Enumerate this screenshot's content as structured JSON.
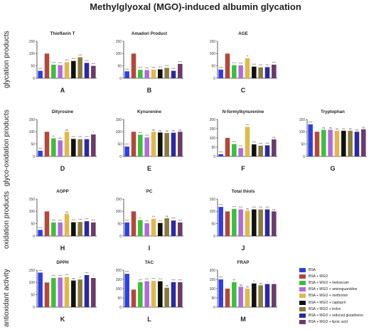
{
  "title": "Methylglyoxal (MGO)-induced albumin glycation",
  "row_labels": [
    "glycation products",
    "glyco-oxidation products",
    "oxidation products",
    "antioxidant activity"
  ],
  "legend": [
    {
      "name": "BSA",
      "color": "#2d3fe0"
    },
    {
      "name": "BSA + MGO",
      "color": "#b5473a"
    },
    {
      "name": "BSA + MGO + meloxicam",
      "color": "#3cbf3c"
    },
    {
      "name": "BSA + MGO + aminoguanidine",
      "color": "#b36ad9"
    },
    {
      "name": "BSA + MGO + metformin",
      "color": "#e0b94a"
    },
    {
      "name": "BSA + MGO + captopril",
      "color": "#111111"
    },
    {
      "name": "BSA + MGO + trolox",
      "color": "#8a7a3a"
    },
    {
      "name": "BSA + MGO + reduced glutathione",
      "color": "#2a2aa0"
    },
    {
      "name": "BSA + MGO + lipoic acid",
      "color": "#6b3a6b"
    }
  ],
  "chart_data": [
    {
      "type": "bar",
      "title": "Thioflavin T",
      "letter": "A",
      "ylim": [
        0,
        150
      ],
      "yticks": [
        0,
        50,
        100,
        150
      ],
      "values": [
        30,
        100,
        55,
        53,
        65,
        70,
        85,
        62,
        50
      ],
      "labels": [
        "****",
        "",
        "****",
        "****",
        "****",
        "****",
        "****",
        "****",
        "****"
      ]
    },
    {
      "type": "bar",
      "title": "Amadori Product",
      "letter": "B",
      "ylim": [
        0,
        150
      ],
      "yticks": [
        0,
        50,
        100,
        150
      ],
      "values": [
        28,
        100,
        34,
        33,
        35,
        36,
        42,
        30,
        58
      ],
      "labels": [
        "****",
        "",
        "****",
        "****",
        "****",
        "****",
        "****",
        "****",
        "****"
      ]
    },
    {
      "type": "bar",
      "title": "AGE",
      "letter": "C",
      "ylim": [
        0,
        150
      ],
      "yticks": [
        0,
        50,
        100,
        150
      ],
      "values": [
        35,
        100,
        53,
        52,
        81,
        47,
        44,
        45,
        55
      ],
      "labels": [
        "****",
        "",
        "****",
        "****",
        "**",
        "****",
        "****",
        "****",
        "****"
      ]
    },
    {
      "type": "bar",
      "title": "Dityrosine",
      "letter": "D",
      "ylim": [
        0,
        150
      ],
      "yticks": [
        0,
        50,
        100,
        150
      ],
      "values": [
        23,
        100,
        73,
        65,
        100,
        71,
        70,
        70,
        89
      ],
      "labels": [
        "****",
        "",
        "***",
        "****",
        "ns",
        "****",
        "****",
        "****",
        "*"
      ]
    },
    {
      "type": "bar",
      "title": "Kynurenine",
      "letter": "E",
      "ylim": [
        0,
        150
      ],
      "yticks": [
        0,
        50,
        100,
        150
      ],
      "values": [
        40,
        100,
        88,
        77,
        100,
        97,
        95,
        96,
        100
      ],
      "labels": [
        "****",
        "",
        "****",
        "****",
        "ns",
        "ns",
        "ns",
        "ns",
        "ns"
      ]
    },
    {
      "type": "bar",
      "title": "N-formylkynurenine",
      "letter": "F",
      "ylim": [
        0,
        200
      ],
      "yticks": [
        0,
        50,
        100,
        150,
        200
      ],
      "values": [
        12,
        100,
        67,
        45,
        160,
        65,
        58,
        60,
        92
      ],
      "labels": [
        "****",
        "",
        "****",
        "****",
        "****",
        "****",
        "****",
        "****",
        "ns"
      ]
    },
    {
      "type": "bar",
      "title": "Tryptophan",
      "letter": "G",
      "ylim": [
        0,
        150
      ],
      "yticks": [
        0,
        50,
        100,
        150
      ],
      "values": [
        130,
        100,
        108,
        108,
        104,
        104,
        104,
        100,
        110
      ],
      "labels": [
        "****",
        "",
        "ns",
        "ns",
        "ns",
        "ns",
        "ns",
        "ns",
        "ns"
      ]
    },
    {
      "type": "bar",
      "title": "AOPP",
      "letter": "H",
      "ylim": [
        0,
        150
      ],
      "yticks": [
        0,
        50,
        100,
        150
      ],
      "values": [
        25,
        100,
        55,
        55,
        90,
        56,
        57,
        60,
        55
      ],
      "labels": [
        "****",
        "",
        "****",
        "****",
        "ns",
        "****",
        "****",
        "****",
        "****"
      ]
    },
    {
      "type": "bar",
      "title": "PC",
      "letter": "I",
      "ylim": [
        0,
        150
      ],
      "yticks": [
        0,
        50,
        100,
        150
      ],
      "values": [
        55,
        100,
        65,
        52,
        70,
        53,
        72,
        63,
        55
      ],
      "labels": [
        "****",
        "",
        "**",
        "****",
        "***",
        "****",
        "ns",
        "****",
        "****"
      ]
    },
    {
      "type": "bar",
      "title": "Total thiols",
      "letter": "J",
      "ylim": [
        0,
        150
      ],
      "yticks": [
        0,
        50,
        100,
        150
      ],
      "values": [
        118,
        100,
        110,
        108,
        103,
        108,
        108,
        108,
        100
      ],
      "labels": [
        "****",
        "",
        "****",
        "****",
        "ns",
        "****",
        "****",
        "****",
        "ns"
      ]
    },
    {
      "type": "bar",
      "title": "DPPH",
      "letter": "K",
      "ylim": [
        0,
        150
      ],
      "yticks": [
        0,
        50,
        100,
        150
      ],
      "values": [
        140,
        100,
        118,
        120,
        122,
        108,
        112,
        130,
        118
      ],
      "labels": [
        "****",
        "",
        "****",
        "****",
        "****",
        "ns",
        "**",
        "****",
        "*"
      ]
    },
    {
      "type": "bar",
      "title": "TAC",
      "letter": "L",
      "ylim": [
        0,
        200
      ],
      "yticks": [
        0,
        50,
        100,
        150,
        200
      ],
      "values": [
        180,
        95,
        135,
        140,
        142,
        140,
        105,
        135,
        135
      ],
      "labels": [
        "****",
        "",
        "****",
        "****",
        "****",
        "****",
        "ns",
        "****",
        "****"
      ]
    },
    {
      "type": "bar",
      "title": "FRAP",
      "letter": "M",
      "ylim": [
        0,
        200
      ],
      "yticks": [
        0,
        50,
        100,
        150,
        200
      ],
      "values": [
        150,
        100,
        135,
        110,
        100,
        128,
        118,
        125,
        125
      ],
      "labels": [
        "****",
        "",
        "***",
        "ns",
        "ns",
        "**",
        "ns",
        "*",
        "*"
      ]
    }
  ]
}
